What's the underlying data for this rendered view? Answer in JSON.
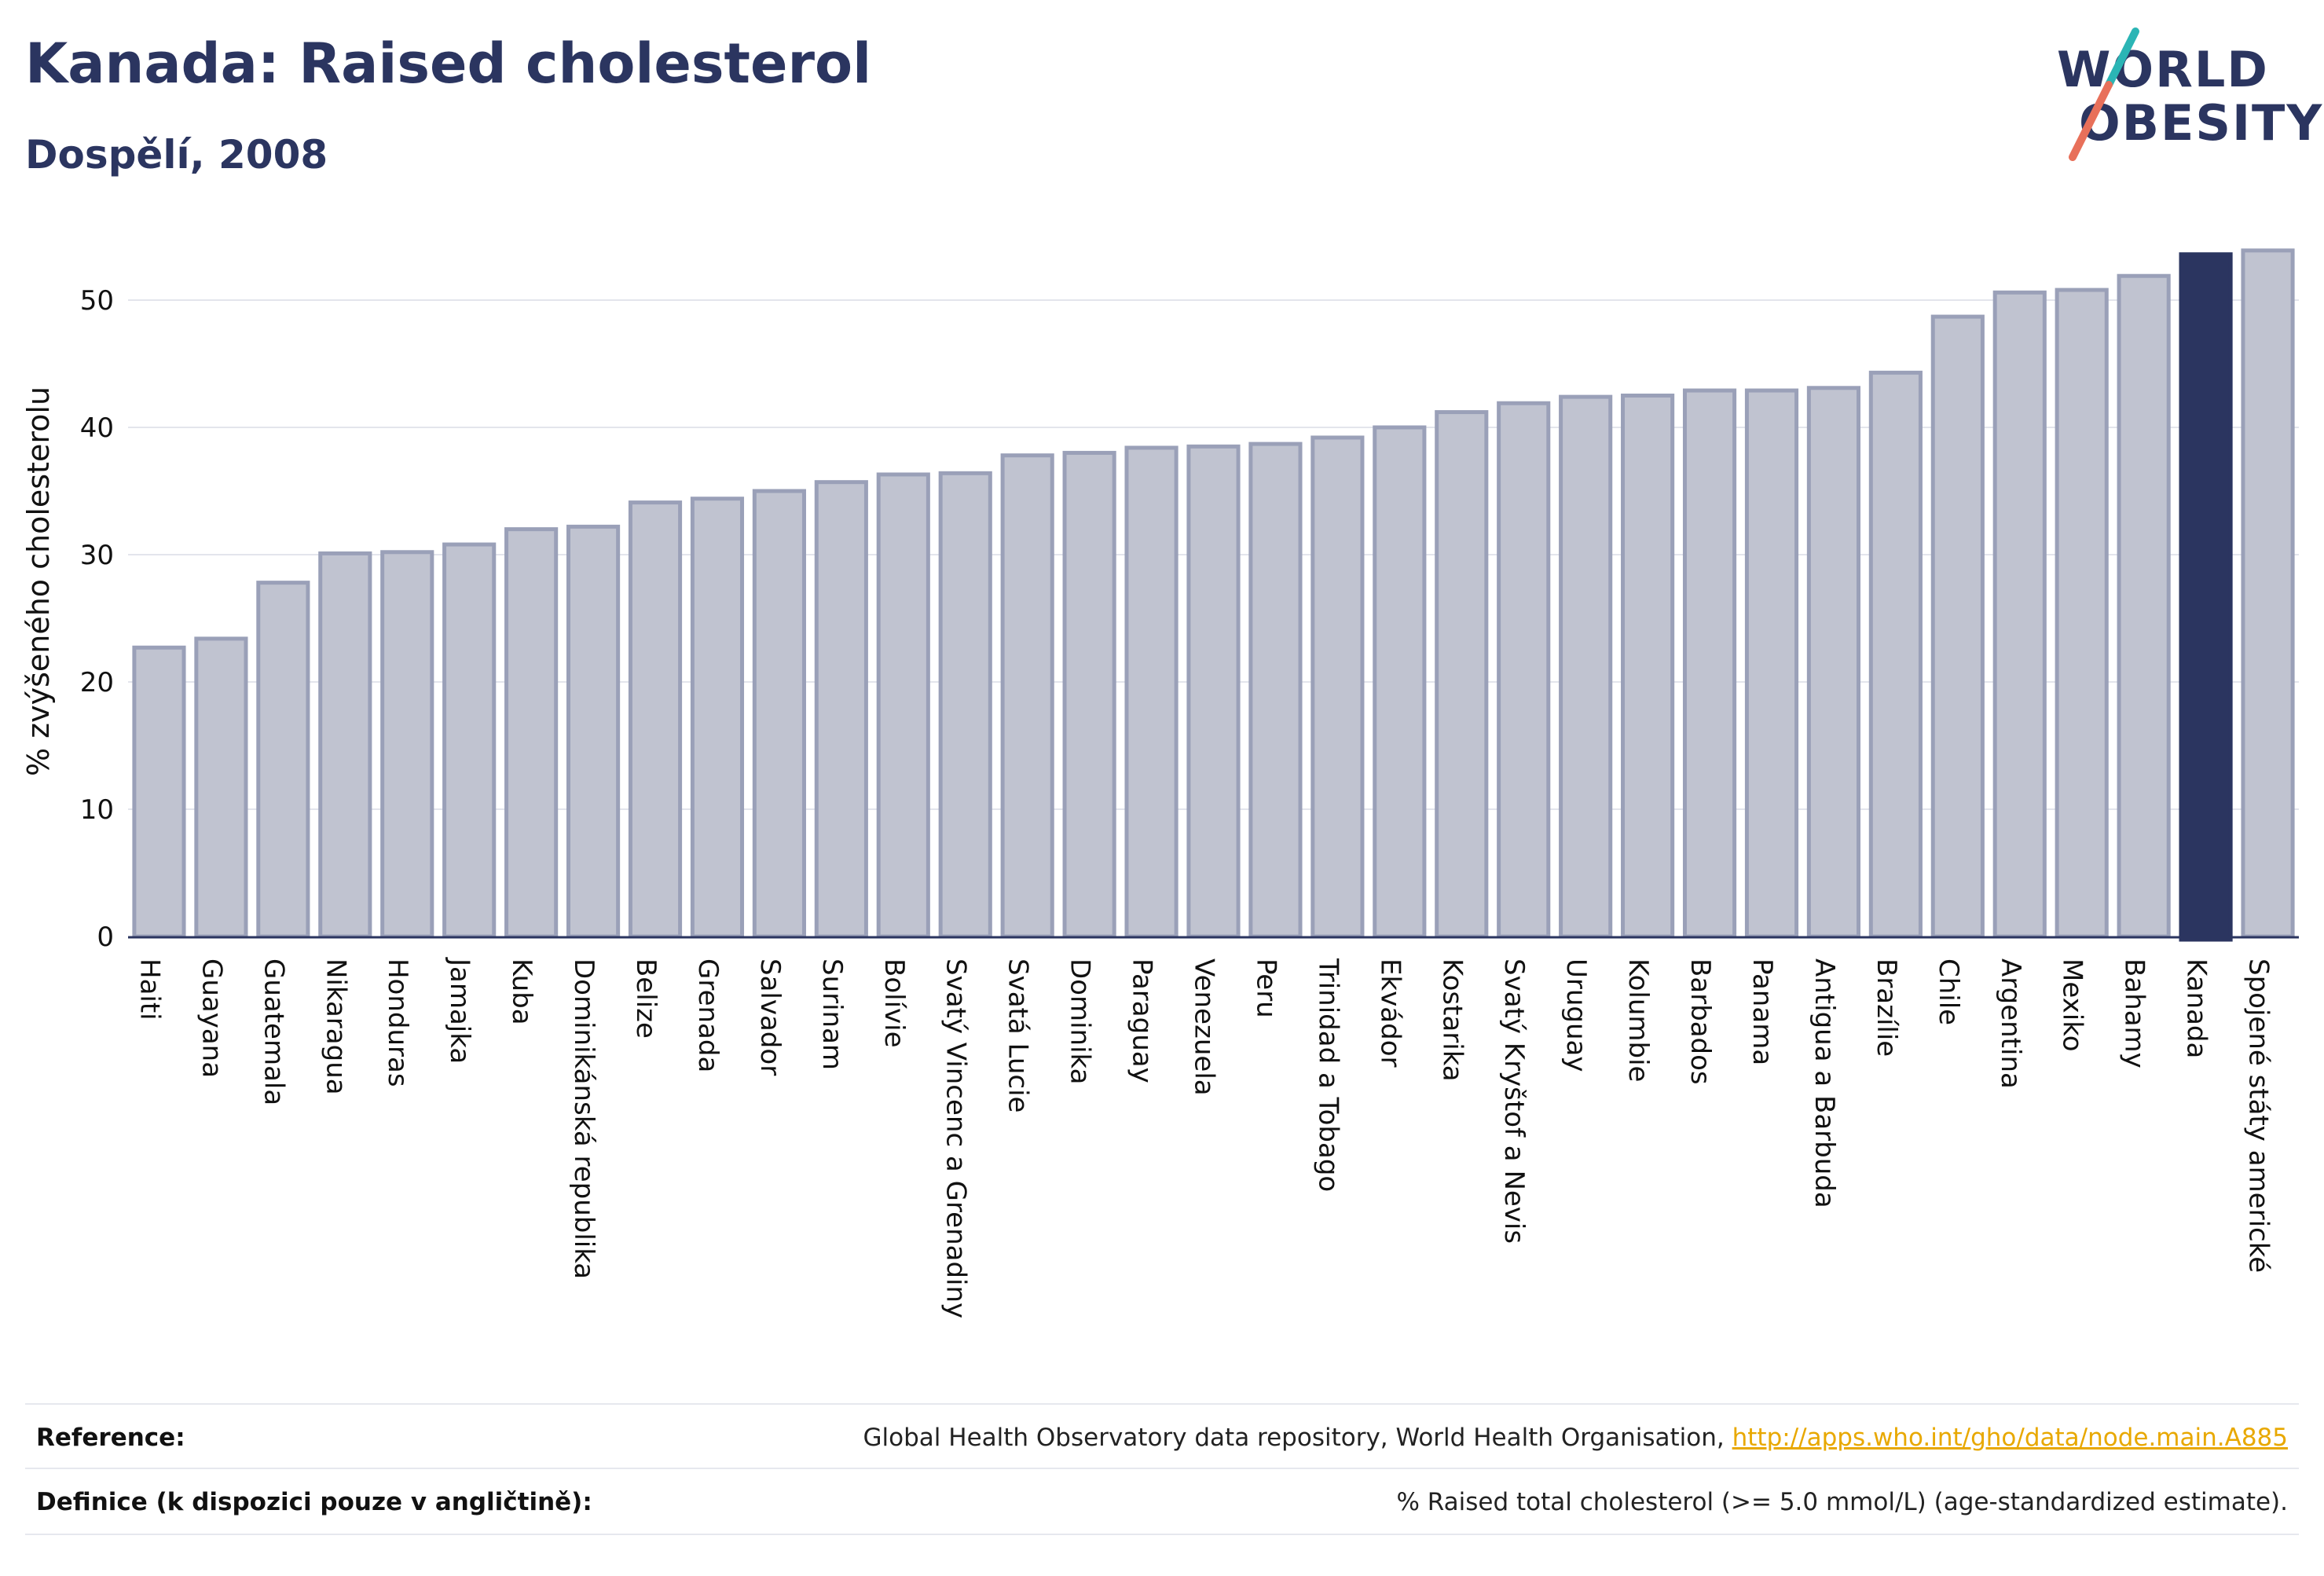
{
  "header": {
    "title": "Kanada: Raised cholesterol",
    "subtitle": "Dospělí, 2008"
  },
  "logo": {
    "line1": "WORLD",
    "line2": "OBESITY",
    "accent_teal": "#2bb5b5",
    "accent_coral": "#e8705a"
  },
  "colors": {
    "bar_fill": "#c0c3d0",
    "bar_stroke": "#9aa0b8",
    "highlight": "#2b3560",
    "text": "#2b3560"
  },
  "chart_data": {
    "type": "bar",
    "title": "Kanada: Raised cholesterol",
    "subtitle": "Dospělí, 2008",
    "xlabel": "",
    "ylabel": "% zvýšeného cholesterolu",
    "ylim": [
      0,
      56
    ],
    "yticks": [
      0,
      10,
      20,
      30,
      40,
      50
    ],
    "grid": true,
    "highlight_category": "Kanada",
    "categories": [
      "Haiti",
      "Guayana",
      "Guatemala",
      "Nikaragua",
      "Honduras",
      "Jamajka",
      "Kuba",
      "Dominikánská republika",
      "Belize",
      "Grenada",
      "Salvador",
      "Surinam",
      "Bolívie",
      "Svatý Vincenc a Grenadiny",
      "Svatá Lucie",
      "Dominika",
      "Paraguay",
      "Venezuela",
      "Peru",
      "Trinidad a Tobago",
      "Ekvádor",
      "Kostarika",
      "Svatý Kryštof a Nevis",
      "Uruguay",
      "Kolumbie",
      "Barbados",
      "Panama",
      "Antigua a Barbuda",
      "Brazílie",
      "Chile",
      "Argentina",
      "Mexiko",
      "Bahamy",
      "Kanada",
      "Spojené státy americké"
    ],
    "values": [
      22.7,
      23.4,
      27.8,
      30.1,
      30.2,
      30.8,
      32.0,
      32.2,
      34.1,
      34.4,
      35.0,
      35.7,
      36.3,
      36.4,
      37.8,
      38.0,
      38.4,
      38.5,
      38.7,
      39.2,
      40.0,
      41.2,
      41.9,
      42.4,
      42.5,
      42.9,
      42.9,
      43.1,
      44.3,
      48.7,
      50.6,
      50.8,
      51.9,
      53.6,
      53.9
    ]
  },
  "footer": {
    "reference_label": "Reference:",
    "reference_text": "Global Health Observatory data repository, World Health Organisation, ",
    "reference_link": "http://apps.who.int/gho/data/node.main.A885",
    "definition_label": "Definice (k dispozici pouze v angličtině):",
    "definition_text": "% Raised total cholesterol (>= 5.0 mmol/L) (age-standardized estimate)."
  }
}
